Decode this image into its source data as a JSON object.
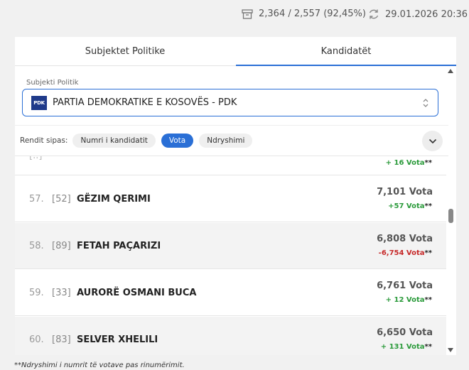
{
  "status": {
    "counted": "2,364 / 2,557 (92,45%)",
    "updated": "29.01.2026 20:36"
  },
  "tabs": [
    "Subjektet Politike",
    "Kandidatët"
  ],
  "party_select": {
    "label": "Subjekti Politik",
    "logo_text": "PDK",
    "value": "PARTIA DEMOKRATIKE E KOSOVËS - PDK"
  },
  "sort": {
    "label": "Rendit sipas:",
    "options": [
      "Numri i kandidatit",
      "Vota",
      "Ndryshimi"
    ]
  },
  "partial_row": {
    "change": "+ 16 Vota",
    "stars": "**"
  },
  "candidates": [
    {
      "rank": "57.",
      "code": "[52]",
      "name": "GËZIM QERIMI",
      "votes": "7,101 Vota",
      "change": "+57 Vota",
      "stars": "**"
    },
    {
      "rank": "58.",
      "code": "[89]",
      "name": "FETAH PAÇARIZI",
      "votes": "6,808 Vota",
      "change": "-6,754 Vota",
      "stars": "**"
    },
    {
      "rank": "59.",
      "code": "[33]",
      "name": "AURORË OSMANI BUCA",
      "votes": "6,761 Vota",
      "change": "+ 12 Vota",
      "stars": "**"
    },
    {
      "rank": "60.",
      "code": "[83]",
      "name": "SELVER XHELILI",
      "votes": "6,650 Vota",
      "change": "+ 131 Vota",
      "stars": "**"
    }
  ],
  "footnote": "**Ndryshimi i numrit të votave pas rinumërimit.",
  "colors": {
    "accent": "#2a6fd6",
    "positive": "#2a9a3a",
    "negative": "#c62828"
  }
}
